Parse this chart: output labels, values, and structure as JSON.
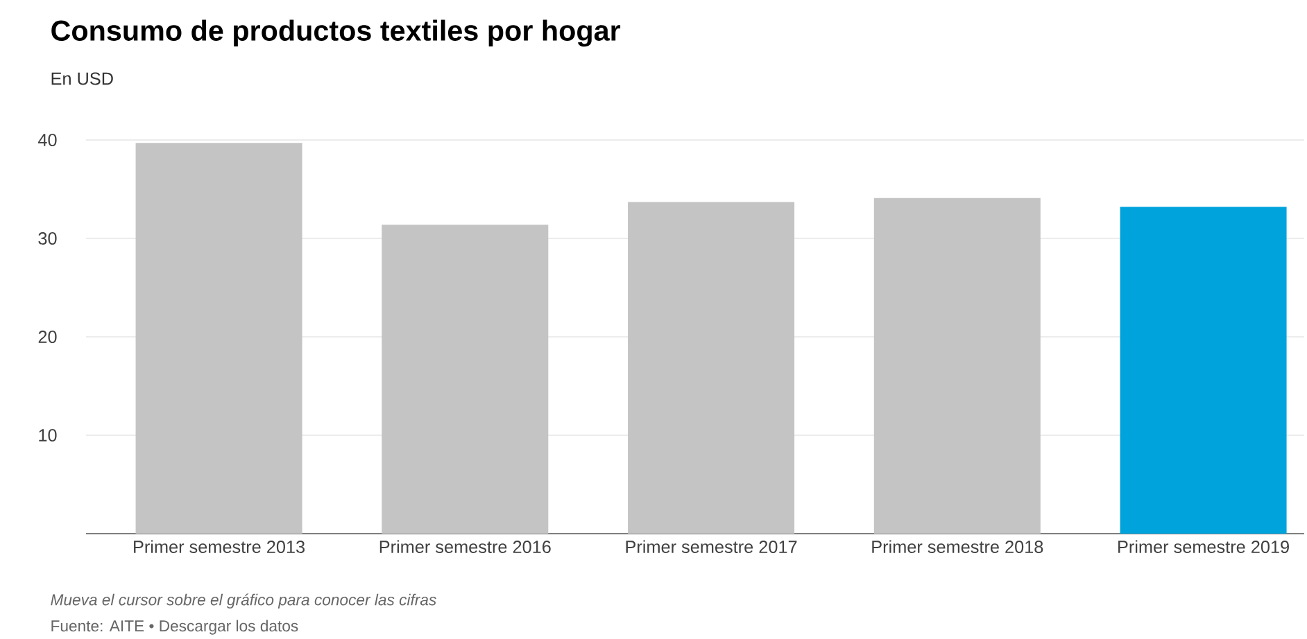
{
  "chart_data": {
    "type": "bar",
    "title": "Consumo de productos textiles por hogar",
    "subtitle": "En USD",
    "categories": [
      "Primer semestre 2013",
      "Primer semestre 2016",
      "Primer semestre 2017",
      "Primer semestre 2018",
      "Primer semestre 2019"
    ],
    "values": [
      39.7,
      31.4,
      33.7,
      34.1,
      33.2
    ],
    "colors": [
      "#c4c4c4",
      "#c4c4c4",
      "#c4c4c4",
      "#c4c4c4",
      "#00a3dc"
    ],
    "ylim": [
      0,
      40
    ],
    "yticks": [
      10,
      20,
      30,
      40
    ],
    "grid": "y",
    "annotations": [
      "Mueva el cursor sobre el gráfico para conocer las cifras",
      "Fuente: AITE • Descargar los datos"
    ]
  }
}
